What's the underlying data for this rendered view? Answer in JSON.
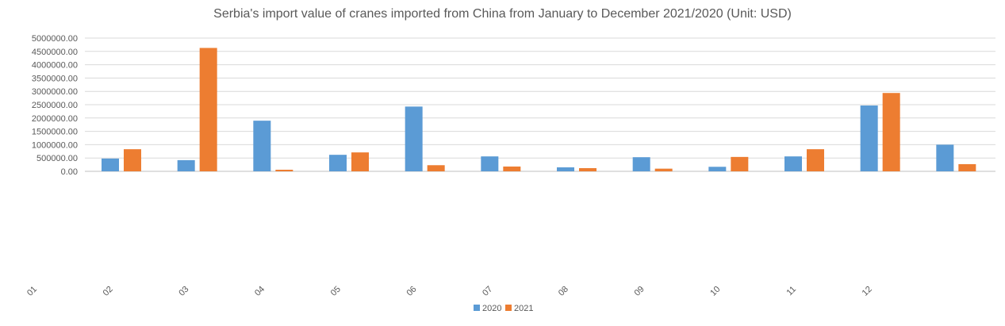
{
  "chart_data": {
    "type": "bar",
    "title": "Serbia's import value of cranes imported from China from January to December 2021/2020 (Unit: USD)",
    "xlabel": "",
    "ylabel": "",
    "categories": [
      "01",
      "02",
      "03",
      "04",
      "05",
      "06",
      "07",
      "08",
      "09",
      "10",
      "11",
      "12"
    ],
    "series": [
      {
        "name": "2020",
        "color": "#5B9BD5",
        "values": [
          480000,
          420000,
          1900000,
          620000,
          2430000,
          560000,
          150000,
          530000,
          170000,
          560000,
          2470000,
          1000000
        ]
      },
      {
        "name": "2021",
        "color": "#ED7D31",
        "values": [
          830000,
          4630000,
          60000,
          710000,
          230000,
          180000,
          120000,
          100000,
          540000,
          830000,
          2940000,
          270000
        ]
      }
    ],
    "ylim": [
      0,
      5000000
    ],
    "yticks": [
      "0.00",
      "500000.00",
      "1000000.00",
      "1500000.00",
      "2000000.00",
      "2500000.00",
      "3000000.00",
      "3500000.00",
      "4000000.00",
      "4500000.00",
      "5000000.00"
    ],
    "grid": true,
    "legend": "bottom"
  }
}
